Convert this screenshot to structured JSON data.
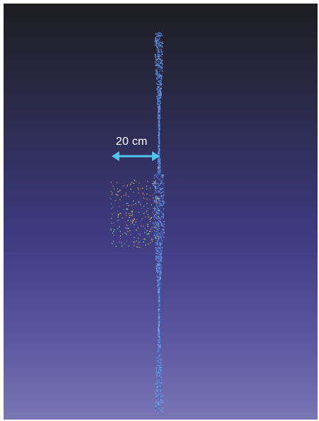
{
  "scene": {
    "scale_bar": {
      "label": "20 cm",
      "color": "#4fc3e8"
    },
    "colors": {
      "background_top": "#1f1f24",
      "background_mid": "#3a3677",
      "background_bottom": "#7671b0",
      "point_cloud": "#5a86d6",
      "scatter_points": [
        "#e1d84a",
        "#8fd16a",
        "#d64a6b",
        "#6bc6d4",
        "#e09a3a"
      ]
    }
  }
}
